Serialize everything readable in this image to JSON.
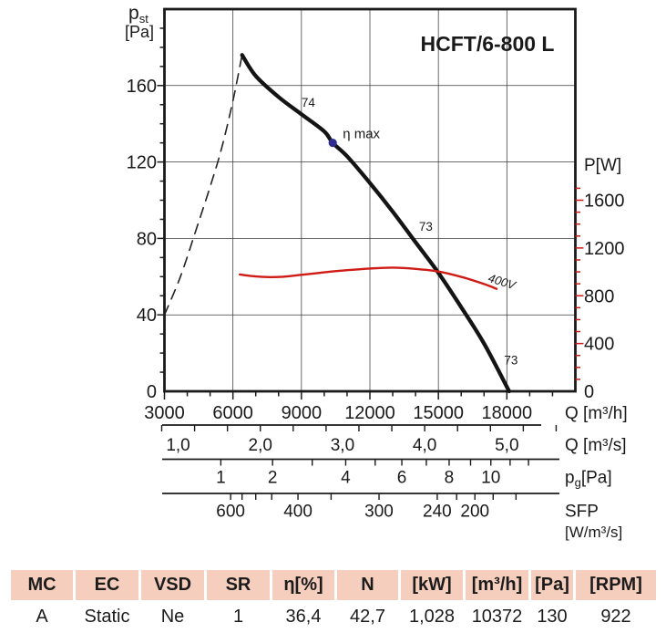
{
  "chart_data": {
    "type": "line",
    "title": "HCFT/6-800 L",
    "x_axis": {
      "label": "Q [m³/h]",
      "ticks": [
        3000,
        6000,
        9000,
        12000,
        15000,
        18000
      ],
      "minor_step": 1000,
      "minor_max": 20000,
      "range": [
        3000,
        21000
      ]
    },
    "y_left": {
      "label_main": "p",
      "label_sub": "st",
      "unit": "[Pa]",
      "ticks": [
        0,
        40,
        80,
        120,
        160
      ],
      "minor_step": 10,
      "minor_max": 190,
      "range": [
        0,
        200
      ]
    },
    "y_right": {
      "label": "P[W]",
      "color": "#cf1b15",
      "ticks": [
        0,
        400,
        800,
        1200,
        1600
      ],
      "minor_step": 100,
      "minor_max": 1700,
      "range": [
        0,
        3200
      ]
    },
    "series": [
      {
        "name": "stall-region-dashed-curve",
        "axis": "left",
        "style": "dashed",
        "color": "#222222",
        "width": 1.6,
        "points": [
          [
            3000,
            40
          ],
          [
            3700,
            60
          ],
          [
            4400,
            85
          ],
          [
            5000,
            107
          ],
          [
            5500,
            127
          ],
          [
            6000,
            152
          ],
          [
            6400,
            176
          ]
        ]
      },
      {
        "name": "fan-pressure-curve",
        "axis": "left",
        "style": "solid",
        "color": "#141414",
        "width": 4.3,
        "points": [
          [
            6400,
            176
          ],
          [
            7000,
            165
          ],
          [
            8000,
            154
          ],
          [
            9000,
            145
          ],
          [
            10000,
            136
          ],
          [
            10372,
            130
          ],
          [
            11000,
            123
          ],
          [
            12000,
            109
          ],
          [
            13000,
            94
          ],
          [
            14000,
            78
          ],
          [
            15000,
            62
          ],
          [
            16000,
            44
          ],
          [
            17000,
            25
          ],
          [
            18100,
            0
          ]
        ]
      },
      {
        "name": "power-curve-400V",
        "axis": "right",
        "style": "solid",
        "color": "#cf1b15",
        "width": 2.4,
        "label": {
          "text": "400V",
          "q": 17150,
          "v": 920,
          "rotate": 17
        },
        "points": [
          [
            6300,
            978
          ],
          [
            7000,
            962
          ],
          [
            7600,
            956
          ],
          [
            8200,
            959
          ],
          [
            9000,
            975
          ],
          [
            10000,
            996
          ],
          [
            11000,
            1014
          ],
          [
            12000,
            1028
          ],
          [
            13000,
            1035
          ],
          [
            14000,
            1025
          ],
          [
            15000,
            1003
          ],
          [
            16000,
            958
          ],
          [
            17000,
            898
          ],
          [
            17550,
            858
          ]
        ]
      }
    ],
    "efficiency_point": {
      "q": 10372,
      "p": 130,
      "label": "η max",
      "color": "#2e2e8f"
    },
    "curve_labels": [
      {
        "text": "74",
        "q": 9000,
        "p": 149
      },
      {
        "text": "73",
        "q": 14150,
        "p": 84
      },
      {
        "text": "73",
        "q": 17880,
        "p": 14
      }
    ],
    "aux_scales": [
      {
        "unit": "Q [m³/s]",
        "labels": [
          {
            "text": "1,0",
            "q": 3600
          },
          {
            "text": "2,0",
            "q": 7200
          },
          {
            "text": "3,0",
            "q": 10800
          },
          {
            "text": "4,0",
            "q": 14400
          },
          {
            "text": "5,0",
            "q": 18000
          }
        ],
        "ticks": [
          2880,
          4320,
          5760,
          7200,
          8640,
          10080,
          11520,
          12960,
          14400,
          15840,
          17280,
          18720,
          20160
        ]
      },
      {
        "unit_main": "p",
        "unit_sub": "g",
        "unit_rest": "[Pa]",
        "labels": [
          {
            "text": "1",
            "q": 5470
          },
          {
            "text": "2",
            "q": 7736
          },
          {
            "text": "4",
            "q": 10940
          },
          {
            "text": "6",
            "q": 13399
          },
          {
            "text": "8",
            "q": 15471
          },
          {
            "text": "10",
            "q": 17298
          }
        ],
        "ticks": [
          5470,
          7736,
          9474,
          10940,
          12231,
          13399,
          14472,
          15471,
          16410,
          17298,
          18142,
          18948
        ]
      },
      {
        "unit_line1": "SFP",
        "unit_line2": "[W/m³/s]",
        "labels": [
          {
            "text": "600",
            "q": 5900
          },
          {
            "text": "400",
            "q": 8850
          },
          {
            "text": "300",
            "q": 12400
          },
          {
            "text": "240",
            "q": 14950
          },
          {
            "text": "200",
            "q": 16600
          }
        ],
        "ticks": [
          5900,
          6400,
          7000,
          7700,
          8850,
          10300,
          12400,
          14950,
          15800,
          16600,
          17400,
          18400
        ]
      }
    ]
  },
  "table": {
    "columns": [
      {
        "header": "MC",
        "value": "A"
      },
      {
        "header": "EC",
        "value": "Static"
      },
      {
        "header": "VSD",
        "value": "Ne"
      },
      {
        "header": "SR",
        "value": "1"
      },
      {
        "header": "η[%]",
        "value": "36,4"
      },
      {
        "header": "N",
        "value": "42,7"
      },
      {
        "header": "[kW]",
        "value": "1,028"
      },
      {
        "header": "[m³/h]",
        "value": "10372"
      },
      {
        "header": "[Pa]",
        "value": "130"
      },
      {
        "header": "[RPM]",
        "value": "922"
      }
    ]
  }
}
